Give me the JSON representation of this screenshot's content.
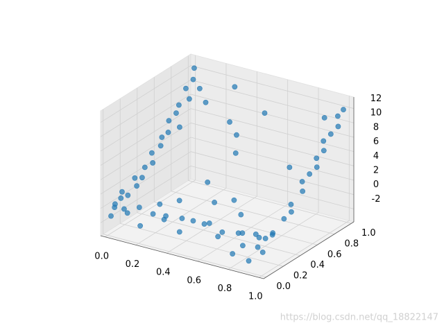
{
  "chart_data": {
    "type": "scatter3d",
    "watermark": "https://blog.csdn.net/qq_18822147",
    "xlim": [
      -0.03,
      1.03
    ],
    "ylim": [
      -0.03,
      1.03
    ],
    "zlim": [
      -3.8,
      13.6
    ],
    "xticks": [
      {
        "value": 0,
        "label": "0.0"
      },
      {
        "value": 0.2,
        "label": "0.2"
      },
      {
        "value": 0.4,
        "label": "0.4"
      },
      {
        "value": 0.6,
        "label": "0.6"
      },
      {
        "value": 0.8,
        "label": "0.8"
      },
      {
        "value": 1,
        "label": "1.0"
      }
    ],
    "yticks": [
      {
        "value": 0,
        "label": "0.0"
      },
      {
        "value": 0.2,
        "label": "0.2"
      },
      {
        "value": 0.4,
        "label": "0.4"
      },
      {
        "value": 0.6,
        "label": "0.6"
      },
      {
        "value": 0.8,
        "label": "0.8"
      },
      {
        "value": 1,
        "label": "1.0"
      }
    ],
    "zticks": [
      -2,
      0,
      2,
      4,
      6,
      8,
      10,
      12
    ],
    "grid": true,
    "series": [
      {
        "color": "#1f77b4",
        "x": [
          0.01,
          0.02,
          0.0,
          0.03,
          0.01,
          0.04,
          0.02,
          0.05,
          0.01,
          0.03,
          0.02,
          0.06,
          0.01,
          0.04,
          0.02,
          0.05,
          0.01,
          0.03,
          0.02,
          0.06,
          0.01,
          0.03,
          0.02,
          0.1,
          0.15,
          0.08,
          0.98,
          0.97,
          0.99,
          0.96,
          0.98,
          1.0,
          0.97,
          0.99,
          0.96,
          0.98,
          1.0,
          0.97,
          0.99,
          0.96,
          0.98,
          1.0,
          0.97,
          0.99,
          0.9,
          0.85,
          0.1,
          0.15,
          0.2,
          0.25,
          0.3,
          0.35,
          0.4,
          0.45,
          0.5,
          0.55,
          0.6,
          0.65,
          0.7,
          0.75,
          0.8,
          0.82,
          0.85,
          0.88,
          0.9,
          0.92,
          0.94,
          0.3,
          0.5,
          0.6,
          0.2,
          0.7,
          0.4,
          0.5,
          0.35,
          0.55,
          0.3,
          0.45
        ],
        "y": [
          0.02,
          0.05,
          0.08,
          0.1,
          0.15,
          0.12,
          0.2,
          0.25,
          0.3,
          0.35,
          0.4,
          0.42,
          0.5,
          0.55,
          0.6,
          0.62,
          0.7,
          0.75,
          0.8,
          0.85,
          0.9,
          0.95,
          0.98,
          0.9,
          0.88,
          0.7,
          0.05,
          0.1,
          0.15,
          0.2,
          0.3,
          0.35,
          0.4,
          0.5,
          0.55,
          0.6,
          0.65,
          0.7,
          0.75,
          0.8,
          0.85,
          0.9,
          0.95,
          0.98,
          0.92,
          0.6,
          0.05,
          0.1,
          0.02,
          0.08,
          0.12,
          0.05,
          0.15,
          0.03,
          0.1,
          0.2,
          0.05,
          0.12,
          0.08,
          0.18,
          0.02,
          0.1,
          0.05,
          0.15,
          0.03,
          0.1,
          0.08,
          0.3,
          0.35,
          0.4,
          0.25,
          0.3,
          0.45,
          0.6,
          0.8,
          0.85,
          0.95,
          0.7
        ],
        "z": [
          -1.2,
          0.3,
          -0.5,
          0.8,
          1.2,
          -0.8,
          0.4,
          1.5,
          2.0,
          1.8,
          2.8,
          3.5,
          4.0,
          4.8,
          5.5,
          6.2,
          7.0,
          7.8,
          8.5,
          9.2,
          10.0,
          11.0,
          12.3,
          10.5,
          9.0,
          6.5,
          -1.0,
          0.5,
          1.0,
          0.2,
          1.8,
          2.5,
          3.0,
          4.2,
          5.0,
          5.8,
          6.5,
          7.2,
          8.0,
          8.8,
          9.5,
          10.3,
          11.2,
          12.0,
          10.8,
          6.0,
          -0.5,
          0.2,
          -1.5,
          0.0,
          -0.8,
          0.5,
          -0.3,
          -1.0,
          0.3,
          -0.5,
          0.8,
          -1.2,
          0.0,
          -0.6,
          -2.0,
          0.4,
          -0.8,
          0.2,
          -2.5,
          -1.0,
          0.6,
          0.5,
          1.0,
          1.5,
          -0.2,
          0.8,
          2.5,
          6.0,
          8.0,
          10.0,
          11.5,
          7.5
        ]
      }
    ]
  }
}
